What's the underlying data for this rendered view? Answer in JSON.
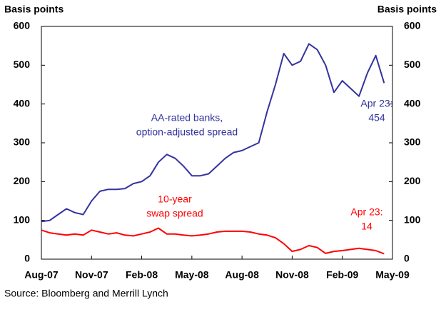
{
  "chart_data": {
    "type": "line",
    "y_label": "Basis points",
    "y2_label": "Basis points",
    "source": "Source: Bloomberg and Merrill Lynch",
    "categories": [
      "Aug-07",
      null,
      null,
      null,
      null,
      null,
      "Nov-07",
      null,
      null,
      null,
      null,
      null,
      "Feb-08",
      null,
      null,
      null,
      null,
      null,
      "May-08",
      null,
      null,
      null,
      null,
      null,
      "Aug-08",
      null,
      null,
      null,
      null,
      null,
      "Nov-08",
      null,
      null,
      null,
      null,
      null,
      "Feb-09",
      null,
      null,
      null,
      null,
      null,
      "May-09"
    ],
    "series": [
      {
        "name": "AA-rated banks, option-adjusted spread",
        "color": "#33339f",
        "values": [
          97,
          100,
          115,
          130,
          120,
          115,
          150,
          175,
          180,
          180,
          182,
          195,
          200,
          215,
          250,
          270,
          260,
          240,
          215,
          215,
          220,
          240,
          260,
          275,
          280,
          290,
          300,
          380,
          450,
          530,
          500,
          510,
          555,
          540,
          500,
          430,
          460,
          440,
          420,
          480,
          525,
          454,
          null
        ]
      },
      {
        "name": "10-year swap spread",
        "color": "#ff0000",
        "values": [
          75,
          68,
          65,
          62,
          65,
          62,
          75,
          70,
          65,
          68,
          62,
          60,
          65,
          70,
          80,
          65,
          65,
          62,
          60,
          62,
          65,
          70,
          72,
          72,
          72,
          70,
          65,
          62,
          55,
          40,
          20,
          25,
          35,
          30,
          15,
          20,
          22,
          25,
          28,
          25,
          22,
          14,
          null
        ]
      }
    ],
    "annotations": [
      [
        "AA-rated banks,",
        "option-adjusted spread"
      ],
      [
        "10-year",
        "swap spread"
      ],
      [
        "Apr 23:",
        "454"
      ],
      [
        "Apr 23:",
        "14"
      ]
    ],
    "ylim": [
      0,
      600
    ],
    "yticks": [
      0,
      100,
      200,
      300,
      400,
      500,
      600
    ],
    "y2lim": [
      0,
      600
    ],
    "y2ticks": [
      0,
      100,
      200,
      300,
      400,
      500,
      600
    ]
  }
}
